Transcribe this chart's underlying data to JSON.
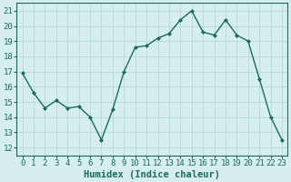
{
  "x": [
    0,
    1,
    2,
    3,
    4,
    5,
    6,
    7,
    8,
    9,
    10,
    11,
    12,
    13,
    14,
    15,
    16,
    17,
    18,
    19,
    20,
    21,
    22,
    23
  ],
  "y": [
    16.9,
    15.6,
    14.6,
    15.1,
    14.6,
    14.7,
    14.0,
    12.5,
    14.5,
    17.0,
    18.6,
    18.7,
    19.2,
    19.5,
    20.4,
    21.0,
    19.6,
    19.4,
    20.4,
    19.4,
    19.0,
    16.5,
    14.0,
    12.5
  ],
  "line_color": "#1a6b5a",
  "marker": "D",
  "marker_size": 2.0,
  "bg_color": "#d6eeee",
  "grid_color": "#b8d8d8",
  "xlabel": "Humidex (Indice chaleur)",
  "ylim": [
    11.5,
    21.5
  ],
  "xlim": [
    -0.5,
    23.5
  ],
  "yticks": [
    12,
    13,
    14,
    15,
    16,
    17,
    18,
    19,
    20,
    21
  ],
  "xtick_labels": [
    "0",
    "1",
    "2",
    "3",
    "4",
    "5",
    "6",
    "7",
    "8",
    "9",
    "10",
    "11",
    "12",
    "13",
    "14",
    "15",
    "16",
    "17",
    "18",
    "19",
    "20",
    "21",
    "22",
    "23"
  ],
  "tick_color": "#1a6b5a",
  "xlabel_fontsize": 7.5,
  "tick_fontsize": 6.5,
  "linewidth": 1.0
}
